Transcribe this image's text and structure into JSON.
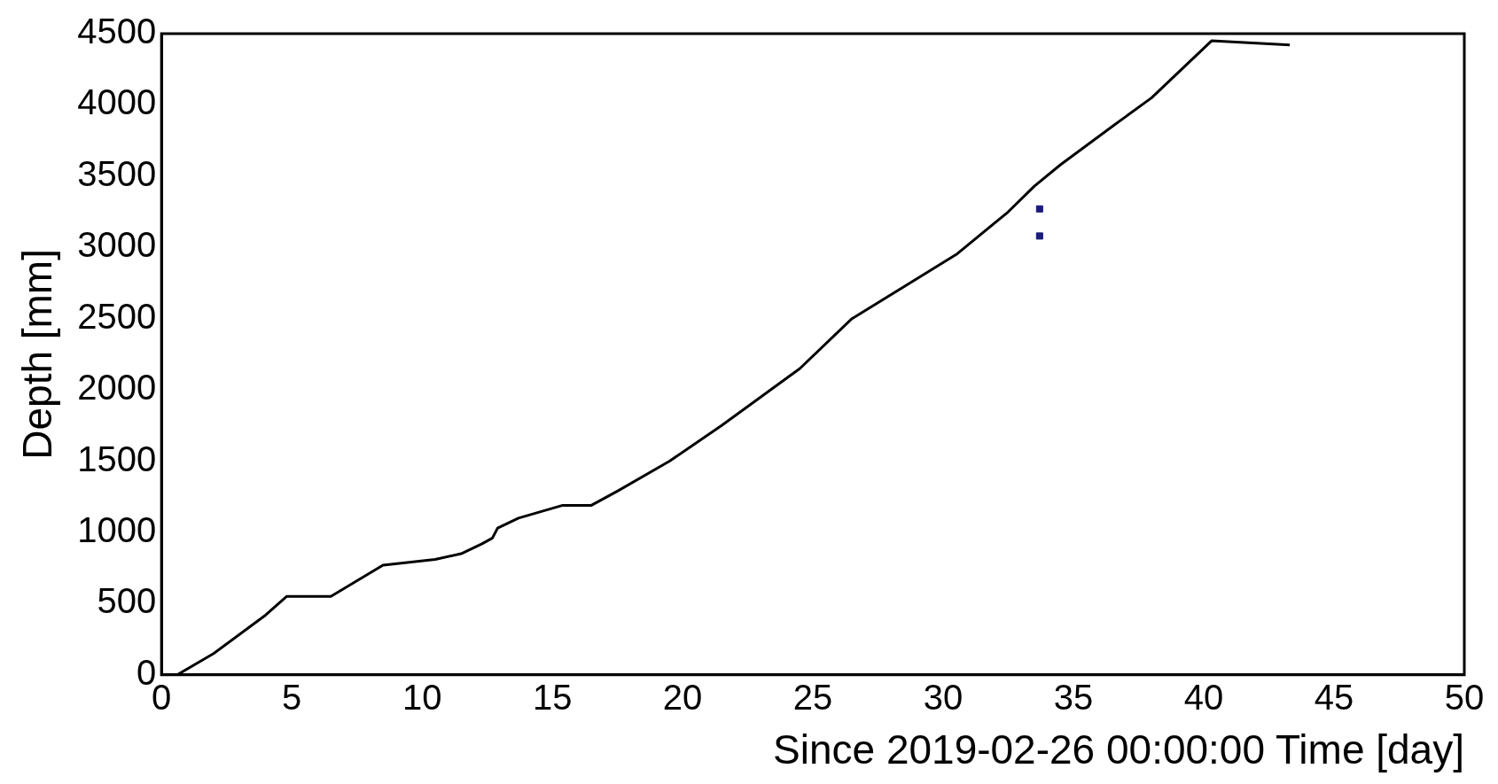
{
  "chart_data": {
    "type": "line",
    "xlabel": "Since 2019-02-26 00:00:00 Time [day]",
    "ylabel": "Depth [mm]",
    "xlim": [
      0,
      50
    ],
    "ylim": [
      0,
      4500
    ],
    "xticks": [
      0,
      5,
      10,
      15,
      20,
      25,
      30,
      35,
      40,
      45,
      50
    ],
    "yticks": [
      0,
      500,
      1000,
      1500,
      2000,
      2500,
      3000,
      3500,
      4000,
      4500
    ],
    "grid": false,
    "legend": false,
    "marker": "none",
    "line_style": "solid",
    "series": [
      {
        "color": "#000000",
        "x": [
          0.6,
          2,
          4,
          4.8,
          6.5,
          8.5,
          10.5,
          11.5,
          12.3,
          12.7,
          12.9,
          13.7,
          15.4,
          16.5,
          17.5,
          19.5,
          21.5,
          24.5,
          26.5,
          30.5,
          32.5,
          33.5,
          34.5,
          36.5,
          38,
          40.3,
          43.3
        ],
        "values": [
          0,
          150,
          420,
          550,
          550,
          770,
          810,
          850,
          920,
          960,
          1030,
          1100,
          1190,
          1190,
          1290,
          1500,
          1750,
          2150,
          2500,
          2950,
          3250,
          3430,
          3580,
          3850,
          4050,
          4450,
          4420
        ]
      },
      {
        "type": "scatter",
        "color": "#1a1a80",
        "marker": "square",
        "x": [
          33.7,
          33.7
        ],
        "values": [
          3270,
          3080
        ]
      }
    ]
  }
}
